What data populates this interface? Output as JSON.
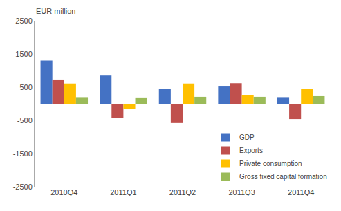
{
  "chart_data": {
    "type": "bar",
    "ylabel": "EUR million",
    "categories": [
      "2010Q4",
      "2011Q1",
      "2011Q2",
      "2011Q3",
      "2011Q4"
    ],
    "series": [
      {
        "name": "GDP",
        "color": "#4472C4",
        "values": [
          1300,
          850,
          450,
          520,
          200
        ]
      },
      {
        "name": "Exports",
        "color": "#C0504D",
        "values": [
          730,
          -420,
          -580,
          620,
          -460
        ]
      },
      {
        "name": "Private consumption",
        "color": "#FFC000",
        "values": [
          610,
          -150,
          610,
          260,
          450
        ]
      },
      {
        "name": "Gross fixed capital formation",
        "color": "#9BBB59",
        "values": [
          200,
          190,
          210,
          210,
          230
        ]
      }
    ],
    "ylim": [
      -2500,
      2500
    ],
    "yticks": [
      -2500,
      -1500,
      -500,
      500,
      1500,
      2500
    ],
    "grid": false,
    "legend": "lower right"
  }
}
